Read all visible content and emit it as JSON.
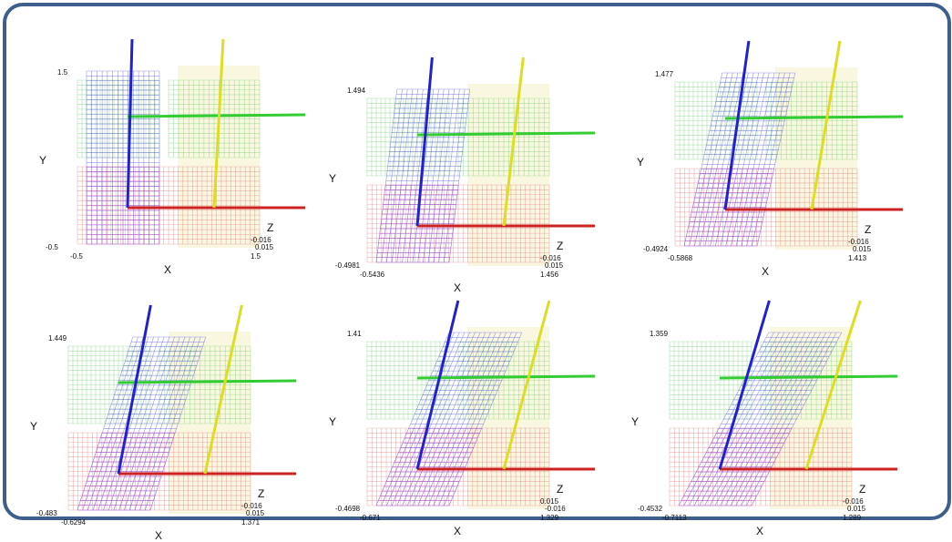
{
  "colors": {
    "frame_border": "#3e5f8e",
    "x_axis": "#cc2222",
    "y_axis": "#33cc33",
    "z_axis_blue": "#2222cc",
    "z_axis_yellow": "#dddd22",
    "mesh_blue": "#5555dd",
    "mesh_green": "#66cc66",
    "mesh_red": "#dd6666",
    "mesh_magenta": "#cc55cc",
    "mesh_yellow_fill": "#f5f0c8"
  },
  "panels": [
    {
      "y_label": "Y",
      "x_label": "X",
      "z_label": "Z",
      "y_max": "1.5",
      "y_min": "-0.5",
      "x_min": "-0.5",
      "x_max": "1.5",
      "z_1": "-0.016",
      "z_2": "0.015",
      "shear": 0.0
    },
    {
      "y_label": "Y",
      "x_label": "X",
      "z_label": "Z",
      "y_max": "1.494",
      "y_min": "-0.4981",
      "x_min": "-0.5436",
      "x_max": "1.456",
      "z_1": "-0.016",
      "z_2": "0.015",
      "shear": 0.12
    },
    {
      "y_label": "Y",
      "x_label": "X",
      "z_label": "Z",
      "y_max": "1.477",
      "y_min": "-0.4924",
      "x_min": "-0.5868",
      "x_max": "1.413",
      "z_1": "-0.016",
      "z_2": "0.015",
      "shear": 0.22
    },
    {
      "y_label": "Y",
      "x_label": "X",
      "z_label": "Z",
      "y_max": "1.449",
      "y_min": "-0.483",
      "x_min": "-0.6294",
      "x_max": "1.371",
      "z_1": "-0.016",
      "z_2": "0.015",
      "shear": 0.32
    },
    {
      "y_label": "Y",
      "x_label": "X",
      "z_label": "Z",
      "y_max": "1.41",
      "y_min": "-0.4698",
      "x_min": "-0.671",
      "x_max": "1.329",
      "z_1": "0.015",
      "z_2": "-0.016",
      "shear": 0.42
    },
    {
      "y_label": "Y",
      "x_label": "X",
      "z_label": "Z",
      "y_max": "1.359",
      "y_min": "-0.4532",
      "x_min": "-0.7113",
      "x_max": "1.289",
      "z_1": "-0.016",
      "z_2": "0.015",
      "shear": 0.52
    }
  ]
}
